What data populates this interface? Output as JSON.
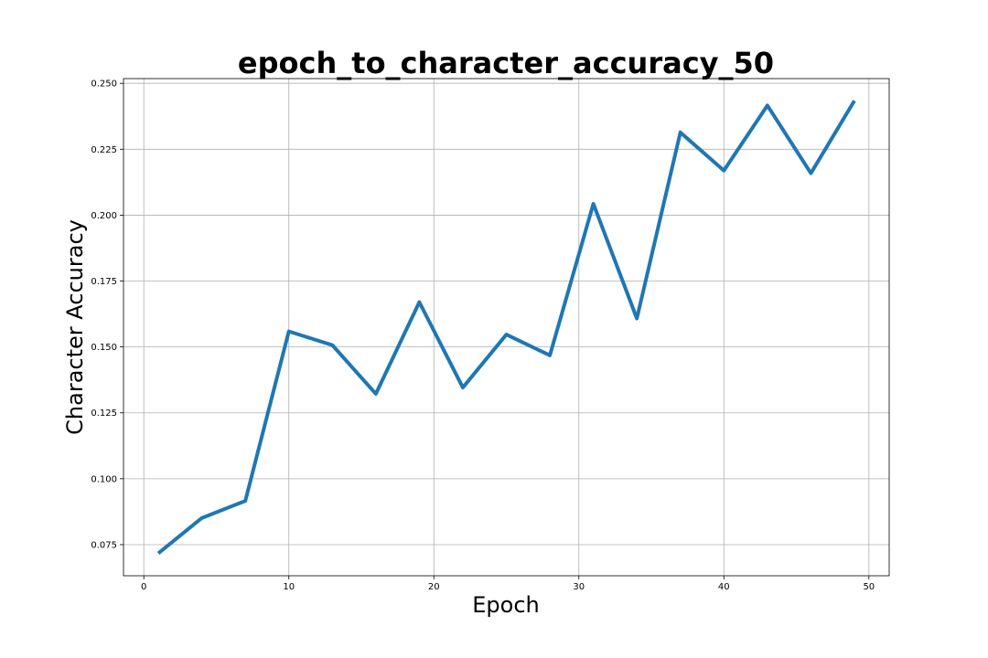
{
  "chart_data": {
    "type": "line",
    "title": "epoch_to_character_accuracy_50",
    "xlabel": "Epoch",
    "ylabel": "Character Accuracy",
    "xlim": [
      -1.4,
      51.4
    ],
    "ylim": [
      0.0632,
      0.2518
    ],
    "xticks": [
      0,
      10,
      20,
      30,
      40,
      50
    ],
    "xtick_labels": [
      "0",
      "10",
      "20",
      "30",
      "40",
      "50"
    ],
    "yticks": [
      0.075,
      0.1,
      0.125,
      0.15,
      0.175,
      0.2,
      0.225,
      0.25
    ],
    "ytick_labels": [
      "0.075",
      "0.100",
      "0.125",
      "0.150",
      "0.175",
      "0.200",
      "0.225",
      "0.250"
    ],
    "grid": true,
    "legend": false,
    "series": [
      {
        "color": "#1f77b4",
        "x": [
          1,
          4,
          7,
          10,
          13,
          16,
          19,
          22,
          25,
          28,
          31,
          34,
          37,
          40,
          43,
          46,
          49
        ],
        "y": [
          0.0717,
          0.0851,
          0.0916,
          0.1559,
          0.1507,
          0.1322,
          0.167,
          0.1346,
          0.1547,
          0.1468,
          0.2043,
          0.1608,
          0.2314,
          0.2169,
          0.2416,
          0.2159,
          0.2434
        ]
      }
    ]
  }
}
